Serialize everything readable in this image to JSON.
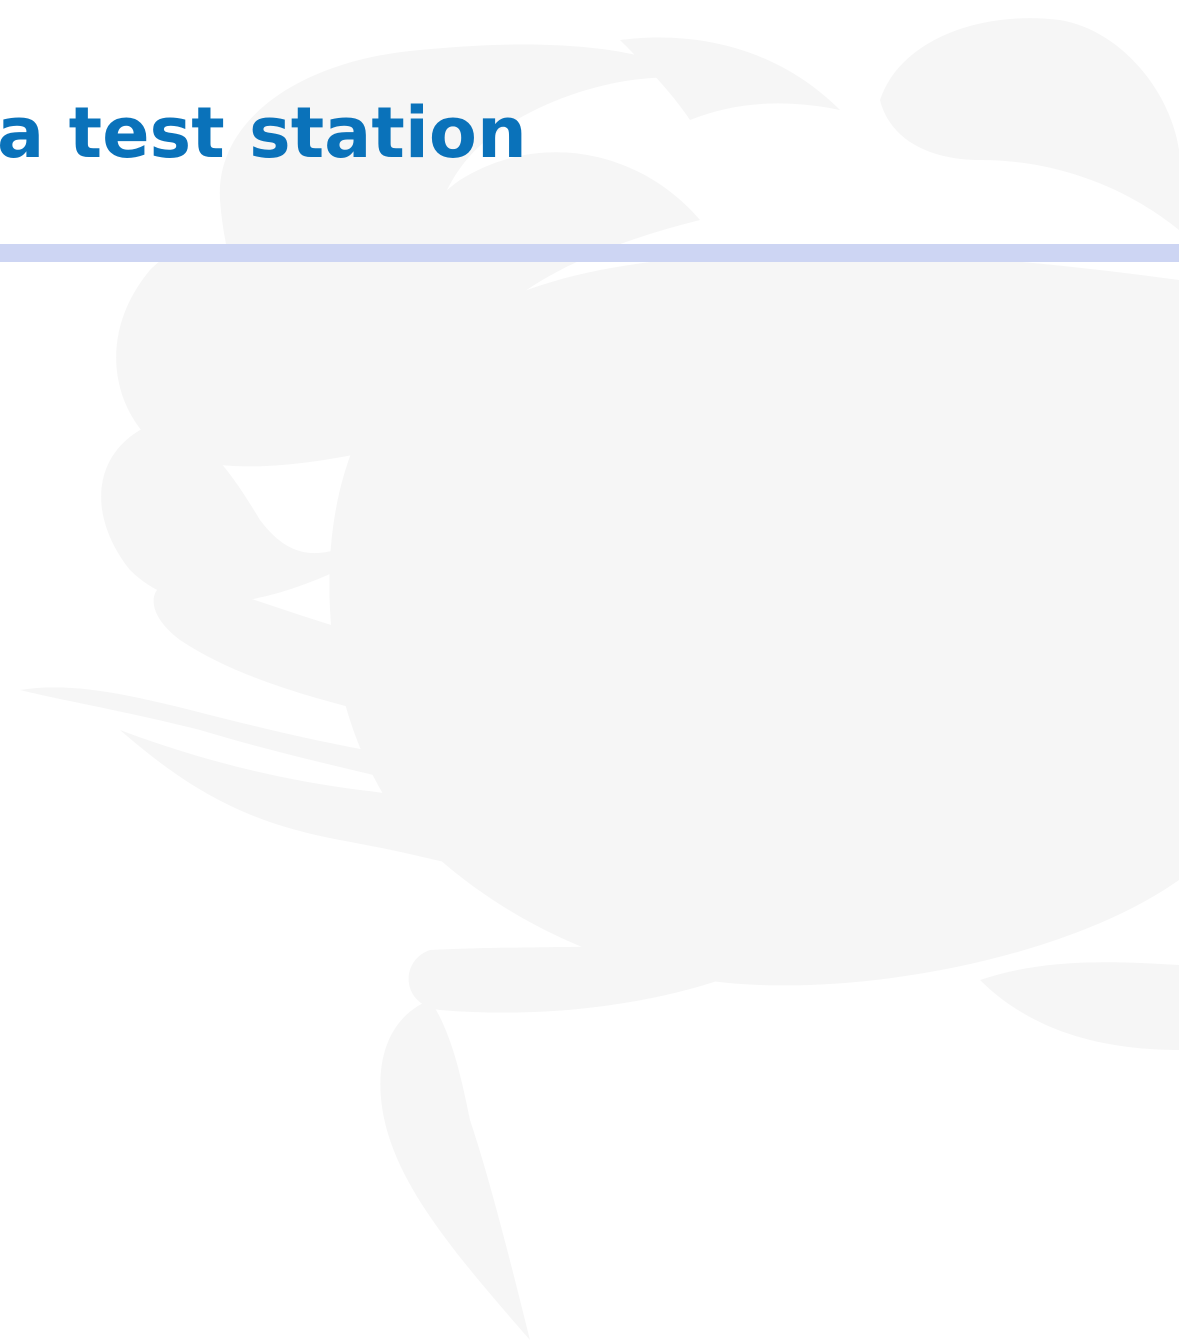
{
  "header": {
    "title": "a test station"
  }
}
